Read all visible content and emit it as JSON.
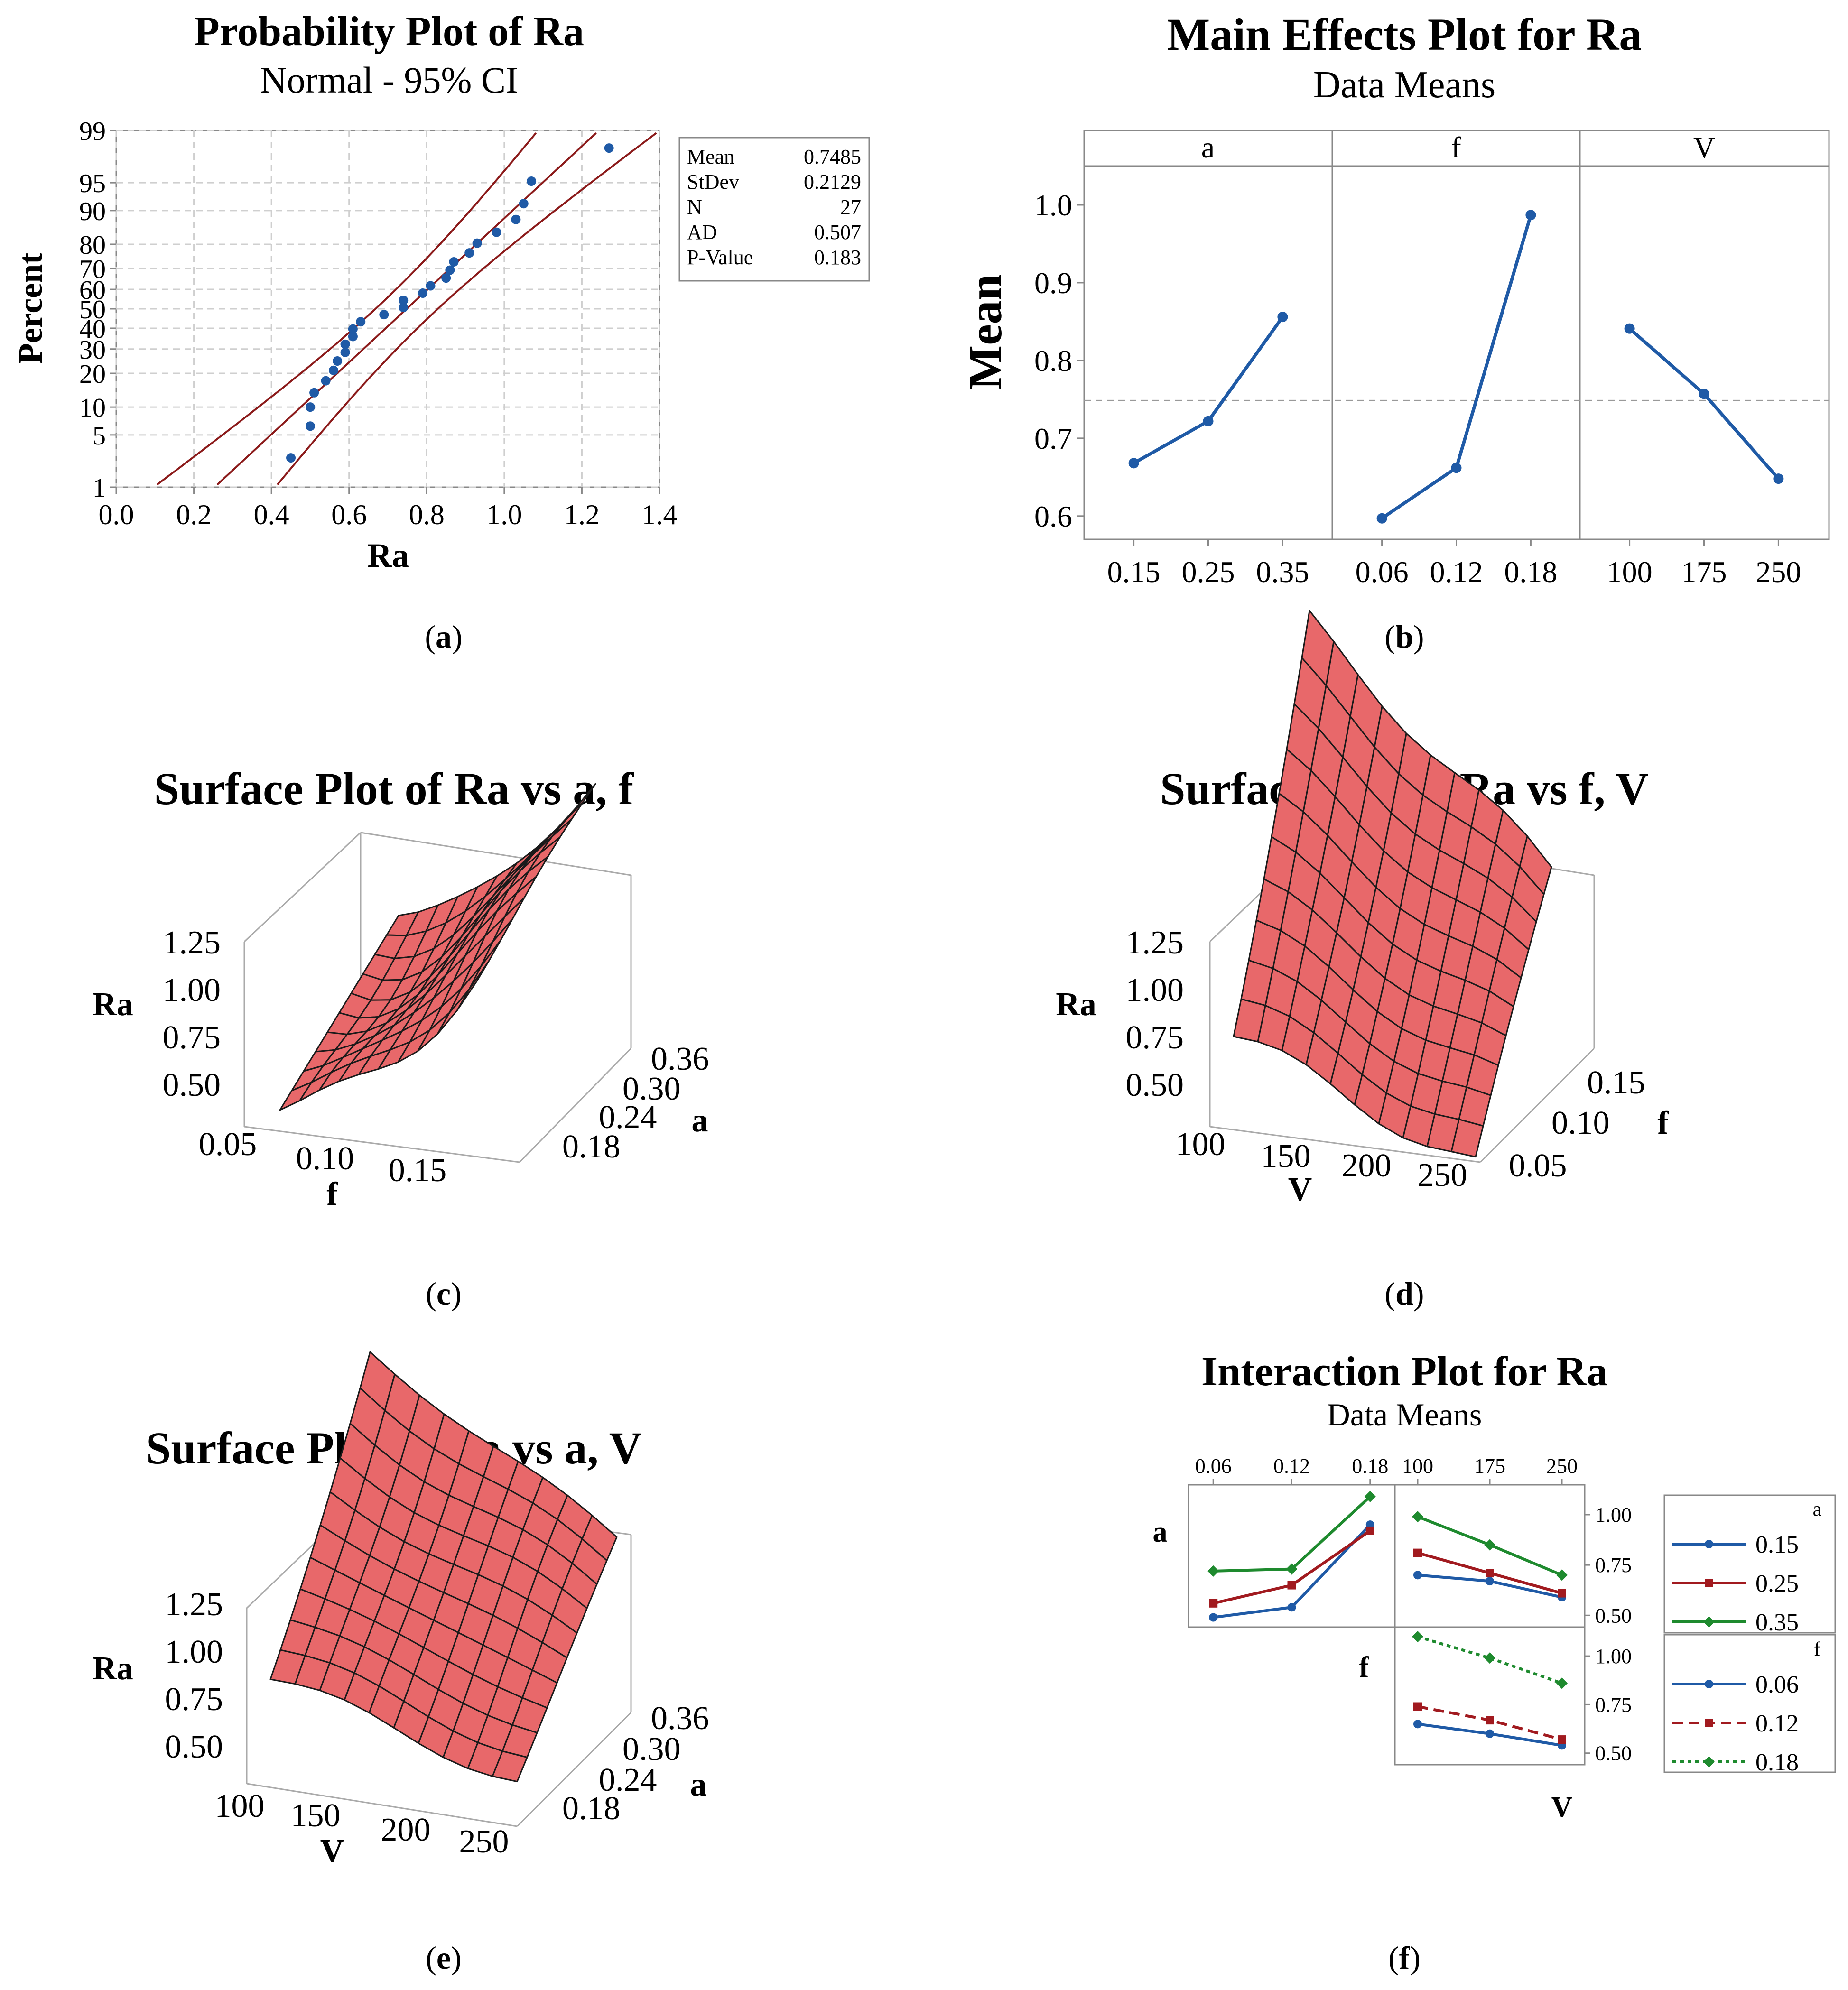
{
  "panels": {
    "a": {
      "caption_letter": "a",
      "title": "Probability Plot of Ra",
      "subtitle": "Normal - 95% CI",
      "xlabel": "Ra",
      "ylabel": "Percent",
      "stats": {
        "labels": [
          "Mean",
          "StDev",
          "N",
          "AD",
          "P-Value"
        ],
        "values": [
          "0.7485",
          "0.2129",
          "27",
          "0.507",
          "0.183"
        ]
      }
    },
    "b": {
      "caption_letter": "b",
      "title": "Main Effects Plot for Ra",
      "subtitle": "Data Means",
      "ylabel": "Mean",
      "facets": [
        "a",
        "f",
        "V"
      ]
    },
    "c": {
      "caption_letter": "c",
      "title": "Surface Plot of Ra vs a, f",
      "zlabel": "Ra",
      "xlabel": "f",
      "ylabel": "a",
      "zticks": [
        "1.25",
        "1.00",
        "0.75",
        "0.50"
      ],
      "xticks": [
        "0.05",
        "0.10",
        "0.15"
      ],
      "yticks": [
        "0.36",
        "0.30",
        "0.24",
        "0.18"
      ]
    },
    "d": {
      "caption_letter": "d",
      "title": "Surface Plot of Ra vs f, V",
      "zlabel": "Ra",
      "xlabel": "V",
      "ylabel": "f",
      "zticks": [
        "1.25",
        "1.00",
        "0.75",
        "0.50"
      ],
      "xticks": [
        "100",
        "150",
        "200",
        "250"
      ],
      "yticks": [
        "0.15",
        "0.10",
        "0.05"
      ]
    },
    "e": {
      "caption_letter": "e",
      "title": "Surface Plot of Ra vs a, V",
      "zlabel": "Ra",
      "xlabel": "V",
      "ylabel": "a",
      "zticks": [
        "1.25",
        "1.00",
        "0.75",
        "0.50"
      ],
      "xticks": [
        "100",
        "150",
        "200",
        "250"
      ],
      "yticks": [
        "0.36",
        "0.30",
        "0.24",
        "0.18"
      ]
    },
    "f": {
      "caption_letter": "f",
      "title": "Interaction Plot for Ra",
      "subtitle": "Data Means",
      "row_labels": [
        "a",
        "f"
      ],
      "xlabel": "V",
      "legend_a_title": "a",
      "legend_f_title": "f"
    }
  },
  "colors": {
    "blue": "#1f5aa6",
    "red": "#a11a1f",
    "green": "#1e8a2e",
    "ci_line": "#8b1a1a",
    "surface": "#e8686a"
  },
  "chart_data": [
    {
      "panel": "a",
      "type": "scatter",
      "scale": "normal-probability",
      "xlim": [
        0.0,
        1.4
      ],
      "xticks": [
        "0.0",
        "0.2",
        "0.4",
        "0.6",
        "0.8",
        "1.0",
        "1.2",
        "1.4"
      ],
      "yticks": [
        "1",
        "5",
        "10",
        "20",
        "30",
        "40",
        "50",
        "60",
        "70",
        "80",
        "90",
        "95",
        "99"
      ],
      "fit_mean": 0.7485,
      "fit_sd": 0.2129,
      "points": [
        {
          "x": 0.45,
          "p": 2.6
        },
        {
          "x": 0.5,
          "p": 6.3
        },
        {
          "x": 0.5,
          "p": 10.0
        },
        {
          "x": 0.51,
          "p": 13.7
        },
        {
          "x": 0.54,
          "p": 17.4
        },
        {
          "x": 0.56,
          "p": 21.1
        },
        {
          "x": 0.57,
          "p": 24.8
        },
        {
          "x": 0.59,
          "p": 28.5
        },
        {
          "x": 0.59,
          "p": 32.2
        },
        {
          "x": 0.61,
          "p": 35.9
        },
        {
          "x": 0.61,
          "p": 39.6
        },
        {
          "x": 0.63,
          "p": 43.3
        },
        {
          "x": 0.69,
          "p": 47.0
        },
        {
          "x": 0.74,
          "p": 50.7
        },
        {
          "x": 0.74,
          "p": 54.4
        },
        {
          "x": 0.79,
          "p": 58.1
        },
        {
          "x": 0.81,
          "p": 61.8
        },
        {
          "x": 0.85,
          "p": 65.6
        },
        {
          "x": 0.86,
          "p": 69.3
        },
        {
          "x": 0.87,
          "p": 73.0
        },
        {
          "x": 0.91,
          "p": 76.7
        },
        {
          "x": 0.93,
          "p": 80.4
        },
        {
          "x": 0.98,
          "p": 84.1
        },
        {
          "x": 1.03,
          "p": 87.8
        },
        {
          "x": 1.05,
          "p": 91.5
        },
        {
          "x": 1.07,
          "p": 95.2
        },
        {
          "x": 1.27,
          "p": 98.2
        }
      ]
    },
    {
      "panel": "b",
      "type": "line",
      "ylim": [
        0.57,
        1.05
      ],
      "yticks": [
        "0.6",
        "0.7",
        "0.8",
        "0.9",
        "1.0"
      ],
      "reference_mean": 0.7485,
      "factors": [
        {
          "name": "a",
          "levels": [
            "0.15",
            "0.25",
            "0.35"
          ],
          "values": [
            0.668,
            0.722,
            0.856
          ]
        },
        {
          "name": "f",
          "levels": [
            "0.06",
            "0.12",
            "0.18"
          ],
          "values": [
            0.597,
            0.662,
            0.987
          ]
        },
        {
          "name": "V",
          "levels": [
            "100",
            "175",
            "250"
          ],
          "values": [
            0.841,
            0.757,
            0.648
          ]
        }
      ]
    },
    {
      "panel": "f",
      "type": "line",
      "ylim": [
        0.47,
        1.12
      ],
      "yticks": [
        "0.50",
        "0.75",
        "1.00"
      ],
      "top_x_f": [
        "0.06",
        "0.12",
        "0.18"
      ],
      "top_x_V": [
        "100",
        "175",
        "250"
      ],
      "a_vs_f": [
        {
          "name": "0.15",
          "values": [
            0.49,
            0.54,
            0.95
          ]
        },
        {
          "name": "0.25",
          "values": [
            0.56,
            0.65,
            0.92
          ]
        },
        {
          "name": "0.35",
          "values": [
            0.72,
            0.73,
            1.09
          ]
        }
      ],
      "a_vs_V": [
        {
          "name": "0.15",
          "values": [
            0.7,
            0.67,
            0.59
          ]
        },
        {
          "name": "0.25",
          "values": [
            0.81,
            0.71,
            0.61
          ]
        },
        {
          "name": "0.35",
          "values": [
            0.99,
            0.85,
            0.7
          ]
        }
      ],
      "f_vs_V": [
        {
          "name": "0.06",
          "values": [
            0.65,
            0.6,
            0.54
          ]
        },
        {
          "name": "0.12",
          "values": [
            0.74,
            0.67,
            0.57
          ]
        },
        {
          "name": "0.18",
          "values": [
            1.1,
            0.99,
            0.86
          ]
        }
      ]
    }
  ]
}
